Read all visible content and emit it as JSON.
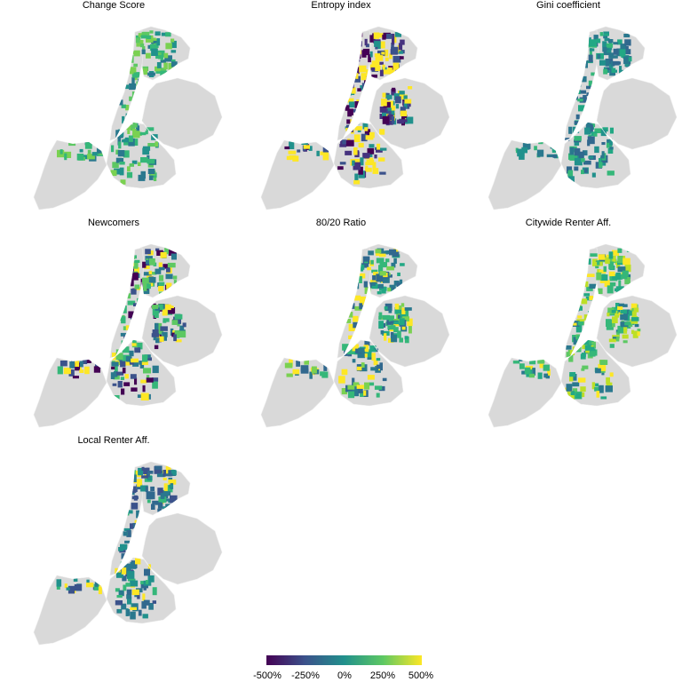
{
  "panels": [
    {
      "title": "Change Score",
      "palette": [
        "#35b779",
        "#5dc863",
        "#21918c",
        "#7ad151",
        "#2a788e"
      ]
    },
    {
      "title": "Entropy index",
      "palette": [
        "#440154",
        "#fde725",
        "#3b528b",
        "#46327e",
        "#fde725",
        "#21918c"
      ]
    },
    {
      "title": "Gini coefficient",
      "palette": [
        "#2a788e",
        "#21918c",
        "#22a884",
        "#31688e",
        "#35b779"
      ]
    },
    {
      "title": "Newcomers",
      "palette": [
        "#440154",
        "#35b779",
        "#fde725",
        "#2a788e",
        "#5dc863",
        "#3b528b"
      ]
    },
    {
      "title": "80/20 Ratio",
      "palette": [
        "#22a884",
        "#2a788e",
        "#35b779",
        "#fde725",
        "#31688e",
        "#7ad151"
      ]
    },
    {
      "title": "Citywide Renter Aff.",
      "palette": [
        "#35b779",
        "#5dc863",
        "#22a884",
        "#bddf26",
        "#2a788e",
        "#fde725"
      ]
    },
    {
      "title": "Local Renter Aff.",
      "palette": [
        "#2a788e",
        "#31688e",
        "#21918c",
        "#35b779",
        "#fde725",
        "#3b528b"
      ]
    }
  ],
  "legend": {
    "labels": [
      "-500%",
      "-250%",
      "0%",
      "250%",
      "500%"
    ],
    "colors": [
      "#440154",
      "#3b528b",
      "#21908c",
      "#5dc863",
      "#fde725"
    ]
  }
}
